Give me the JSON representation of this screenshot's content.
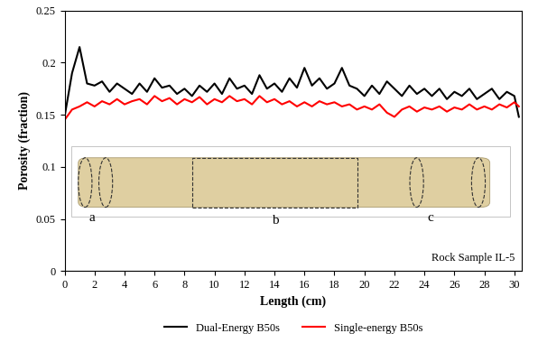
{
  "chart_data": {
    "type": "line",
    "x_label": "Length (cm)",
    "y_label": "Porosity (fraction)",
    "x": [
      0,
      0.5,
      1,
      1.5,
      2,
      2.5,
      3,
      3.5,
      4,
      4.5,
      5,
      5.5,
      6,
      6.5,
      7,
      7.5,
      8,
      8.5,
      9,
      9.5,
      10,
      10.5,
      11,
      11.5,
      12,
      12.5,
      13,
      13.5,
      14,
      14.5,
      15,
      15.5,
      16,
      16.5,
      17,
      17.5,
      18,
      18.5,
      19,
      19.5,
      20,
      20.5,
      21,
      21.5,
      22,
      22.5,
      23,
      23.5,
      24,
      24.5,
      25,
      25.5,
      26,
      26.5,
      27,
      27.5,
      28,
      28.5,
      29,
      29.5,
      30,
      30.3
    ],
    "series": [
      {
        "name": "Dual-Energy B50s",
        "color": "#000000",
        "values": [
          0.148,
          0.19,
          0.215,
          0.18,
          0.178,
          0.182,
          0.172,
          0.18,
          0.175,
          0.17,
          0.18,
          0.172,
          0.185,
          0.176,
          0.178,
          0.17,
          0.175,
          0.168,
          0.178,
          0.172,
          0.18,
          0.17,
          0.185,
          0.175,
          0.178,
          0.17,
          0.188,
          0.175,
          0.18,
          0.172,
          0.185,
          0.176,
          0.195,
          0.178,
          0.185,
          0.175,
          0.18,
          0.195,
          0.178,
          0.175,
          0.168,
          0.178,
          0.17,
          0.182,
          0.175,
          0.168,
          0.178,
          0.17,
          0.175,
          0.168,
          0.175,
          0.165,
          0.172,
          0.168,
          0.175,
          0.165,
          0.17,
          0.175,
          0.165,
          0.172,
          0.168,
          0.148
        ]
      },
      {
        "name": "Single-energy B50s",
        "color": "#ff0000",
        "values": [
          0.145,
          0.155,
          0.158,
          0.162,
          0.158,
          0.163,
          0.16,
          0.165,
          0.16,
          0.163,
          0.165,
          0.16,
          0.168,
          0.163,
          0.166,
          0.16,
          0.165,
          0.162,
          0.167,
          0.16,
          0.165,
          0.162,
          0.168,
          0.163,
          0.165,
          0.16,
          0.168,
          0.162,
          0.165,
          0.16,
          0.163,
          0.158,
          0.162,
          0.158,
          0.163,
          0.16,
          0.162,
          0.158,
          0.16,
          0.155,
          0.158,
          0.155,
          0.16,
          0.152,
          0.148,
          0.155,
          0.158,
          0.153,
          0.157,
          0.155,
          0.158,
          0.153,
          0.157,
          0.155,
          0.16,
          0.155,
          0.158,
          0.155,
          0.16,
          0.157,
          0.162,
          0.158
        ]
      }
    ],
    "xlim": [
      0,
      30.5
    ],
    "xticks": [
      0,
      2,
      4,
      6,
      8,
      10,
      12,
      14,
      16,
      18,
      20,
      22,
      24,
      26,
      28,
      30
    ],
    "ylim": [
      0,
      0.25
    ],
    "yticks": [
      0,
      0.05,
      0.1,
      0.15,
      0.2,
      0.25
    ],
    "grid": false,
    "legend": "below",
    "annotations": [
      "a",
      "b",
      "c",
      "Rock Sample IL-5"
    ]
  }
}
